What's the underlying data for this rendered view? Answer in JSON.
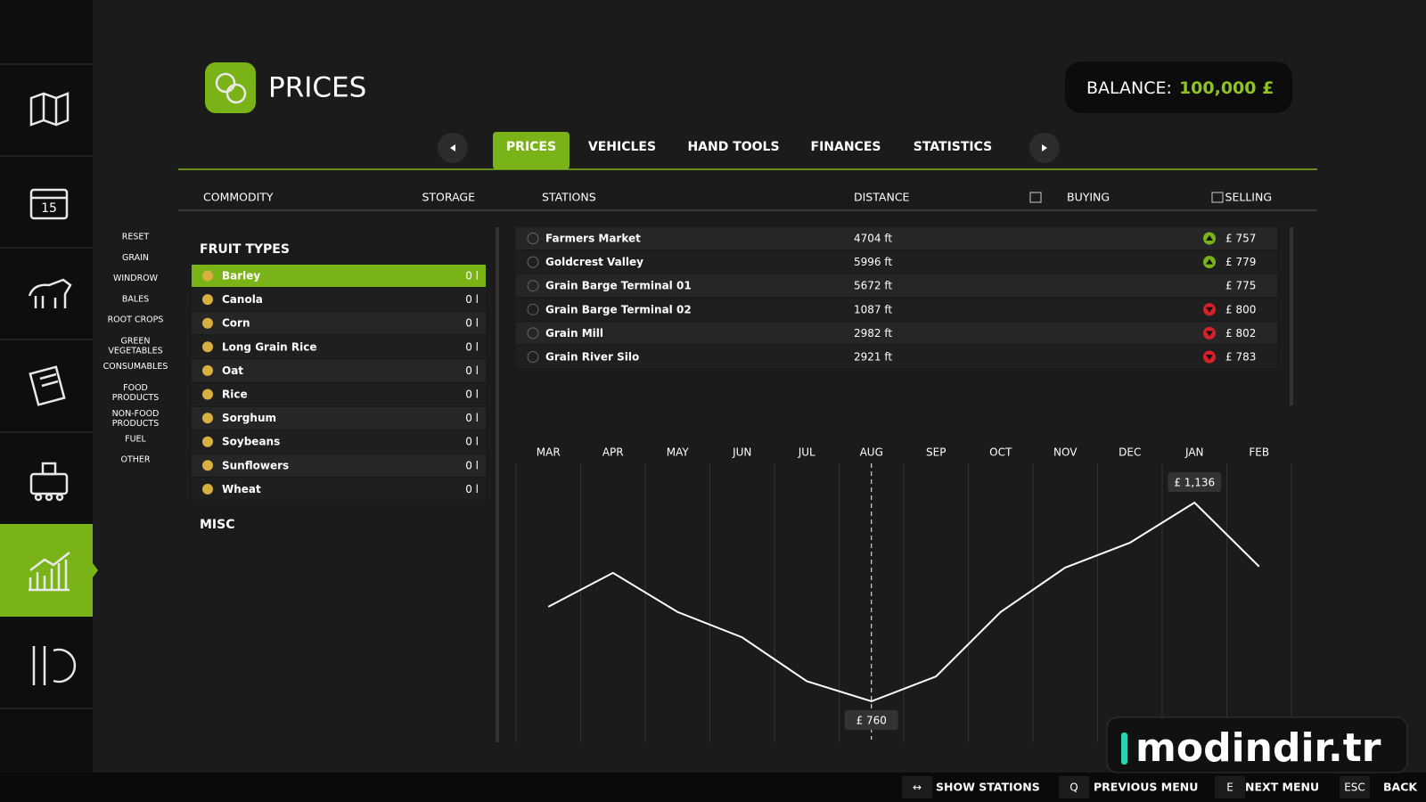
{
  "header": {
    "title": "PRICES",
    "balance_label": "BALANCE:",
    "balance": "100,000 £"
  },
  "tabs": {
    "items": [
      "PRICES",
      "VEHICLES",
      "HAND TOOLS",
      "FINANCES",
      "STATISTICS"
    ],
    "active": 0
  },
  "columns": [
    "COMMODITY",
    "STORAGE",
    "STATIONS",
    "DISTANCE",
    "BUYING",
    "SELLING"
  ],
  "filters": [
    "RESET",
    "GRAIN",
    "WINDROW",
    "BALES",
    "ROOT CROPS",
    "GREEN VEGETABLES",
    "CONSUMABLES",
    "FOOD PRODUCTS",
    "NON-FOOD PRODUCTS",
    "FUEL",
    "OTHER"
  ],
  "commodities": {
    "section": "FRUIT TYPES",
    "selected": 0,
    "items": [
      {
        "name": "Barley",
        "storage": "0 l"
      },
      {
        "name": "Canola",
        "storage": "0 l"
      },
      {
        "name": "Corn",
        "storage": "0 l"
      },
      {
        "name": "Long Grain Rice",
        "storage": "0 l"
      },
      {
        "name": "Oat",
        "storage": "0 l"
      },
      {
        "name": "Rice",
        "storage": "0 l"
      },
      {
        "name": "Sorghum",
        "storage": "0 l"
      },
      {
        "name": "Soybeans",
        "storage": "0 l"
      },
      {
        "name": "Sunflowers",
        "storage": "0 l"
      },
      {
        "name": "Wheat",
        "storage": "0 l"
      }
    ],
    "misc": "MISC"
  },
  "stations": [
    {
      "name": "Farmers Market",
      "distance": "4704 ft",
      "trend": "up",
      "price": "£ 757"
    },
    {
      "name": "Goldcrest Valley",
      "distance": "5996 ft",
      "trend": "up",
      "price": "£ 779"
    },
    {
      "name": "Grain Barge Terminal 01",
      "distance": "5672 ft",
      "trend": null,
      "price": "£ 775"
    },
    {
      "name": "Grain Barge Terminal 02",
      "distance": "1087 ft",
      "trend": "down",
      "price": "£ 800"
    },
    {
      "name": "Grain Mill",
      "distance": "2982 ft",
      "trend": "down",
      "price": "£ 802"
    },
    {
      "name": "Grain River Silo",
      "distance": "2921 ft",
      "trend": "down",
      "price": "£ 783"
    }
  ],
  "chart_data": {
    "type": "line",
    "color": "#ffffff",
    "categories": [
      "MAR",
      "APR",
      "MAY",
      "JUN",
      "JUL",
      "AUG",
      "SEP",
      "OCT",
      "NOV",
      "DEC",
      "JAN",
      "FEB"
    ],
    "values": [
      939,
      1003,
      929,
      881,
      798,
      760,
      807,
      929,
      1013,
      1060,
      1136,
      1015
    ],
    "value_labels": [
      null,
      null,
      null,
      null,
      null,
      "£ 760",
      null,
      null,
      null,
      null,
      "£ 1,136",
      null
    ],
    "current": 5
  },
  "footer": [
    {
      "key": "↔",
      "label": "SHOW STATIONS"
    },
    {
      "key": "Q",
      "label": "PREVIOUS MENU"
    },
    {
      "key": "E",
      "label": "NEXT MENU"
    },
    {
      "key": "ESC",
      "label": "BACK"
    }
  ],
  "watermark": "modindir.tr"
}
